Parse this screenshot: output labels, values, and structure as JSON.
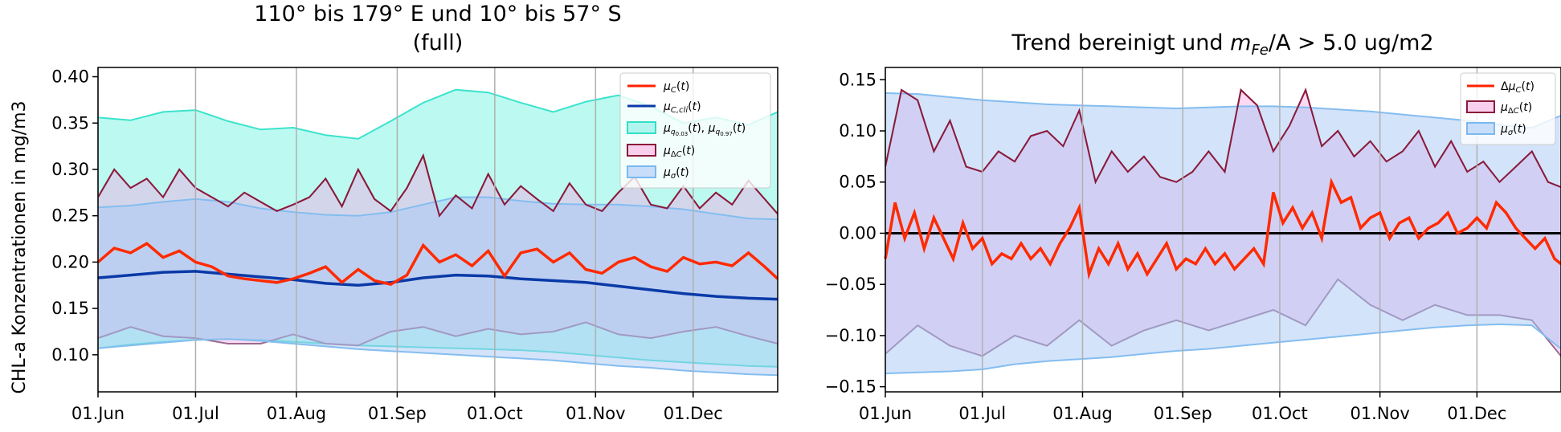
{
  "ylabel": "CHL-a Konzentrationen in mg/m3",
  "chart_data": [
    {
      "type": "line",
      "title_line1": "110° bis 179° E und 10° bis 57° S",
      "title_line2": "(full)",
      "x_tick_labels": [
        "01.Jun",
        "01.Jul",
        "01.Aug",
        "01.Sep",
        "01.Oct",
        "01.Nov",
        "01.Dec"
      ],
      "x_tick_days": [
        0,
        30,
        61,
        92,
        122,
        153,
        183
      ],
      "xlim_days": [
        0,
        209
      ],
      "ylim": [
        0.06,
        0.41
      ],
      "y_ticks": [
        0.1,
        0.15,
        0.2,
        0.25,
        0.3,
        0.35,
        0.4
      ],
      "y_tick_labels": [
        "0.10",
        "0.15",
        "0.20",
        "0.25",
        "0.30",
        "0.35",
        "0.40"
      ],
      "grid": "vertical",
      "legend_position": "top-right",
      "legend": [
        "μ_C(t)",
        "μ_C,cli(t)",
        "μ_q0.03(t), μ_q0.97(t)",
        "μ_ΔC(t)",
        "μ_σ(t)"
      ],
      "series": [
        {
          "key": "q003",
          "x": [
            0,
            10,
            20,
            30,
            40,
            50,
            60,
            70,
            80,
            90,
            100,
            110,
            120,
            130,
            140,
            150,
            160,
            170,
            180,
            190,
            200,
            209
          ],
          "values": [
            0.107,
            0.111,
            0.114,
            0.116,
            0.117,
            0.116,
            0.114,
            0.112,
            0.11,
            0.109,
            0.108,
            0.107,
            0.106,
            0.105,
            0.103,
            0.1,
            0.097,
            0.094,
            0.092,
            0.09,
            0.088,
            0.087
          ]
        },
        {
          "key": "q097",
          "x": [
            0,
            10,
            20,
            30,
            40,
            50,
            60,
            70,
            80,
            90,
            100,
            110,
            120,
            130,
            140,
            150,
            160,
            170,
            180,
            190,
            200,
            209
          ],
          "values": [
            0.356,
            0.353,
            0.362,
            0.364,
            0.352,
            0.343,
            0.345,
            0.337,
            0.333,
            0.352,
            0.372,
            0.386,
            0.383,
            0.372,
            0.362,
            0.373,
            0.38,
            0.368,
            0.35,
            0.356,
            0.348,
            0.362
          ]
        },
        {
          "key": "sigma_upper",
          "x": [
            0,
            10,
            20,
            30,
            40,
            50,
            60,
            70,
            80,
            90,
            100,
            110,
            120,
            130,
            140,
            150,
            160,
            170,
            180,
            190,
            200,
            209
          ],
          "values": [
            0.259,
            0.261,
            0.265,
            0.268,
            0.265,
            0.258,
            0.254,
            0.251,
            0.25,
            0.254,
            0.262,
            0.27,
            0.27,
            0.266,
            0.263,
            0.262,
            0.262,
            0.26,
            0.257,
            0.252,
            0.247,
            0.246
          ]
        },
        {
          "key": "sigma_lower",
          "x": [
            0,
            10,
            20,
            30,
            40,
            50,
            60,
            70,
            80,
            90,
            100,
            110,
            120,
            130,
            140,
            150,
            160,
            170,
            180,
            190,
            200,
            209
          ],
          "values": [
            0.107,
            0.11,
            0.113,
            0.116,
            0.117,
            0.115,
            0.112,
            0.109,
            0.106,
            0.104,
            0.102,
            0.1,
            0.098,
            0.096,
            0.094,
            0.091,
            0.088,
            0.086,
            0.083,
            0.081,
            0.079,
            0.078
          ]
        },
        {
          "key": "delta_upper",
          "x": [
            0,
            5,
            10,
            15,
            20,
            25,
            30,
            35,
            40,
            45,
            50,
            55,
            60,
            65,
            70,
            75,
            80,
            85,
            90,
            95,
            100,
            105,
            110,
            115,
            120,
            125,
            130,
            135,
            140,
            145,
            150,
            155,
            160,
            165,
            170,
            175,
            180,
            185,
            190,
            195,
            200,
            205,
            209
          ],
          "values": [
            0.27,
            0.3,
            0.28,
            0.29,
            0.27,
            0.3,
            0.28,
            0.27,
            0.26,
            0.275,
            0.265,
            0.255,
            0.262,
            0.27,
            0.29,
            0.26,
            0.3,
            0.268,
            0.255,
            0.28,
            0.315,
            0.25,
            0.272,
            0.258,
            0.295,
            0.262,
            0.282,
            0.268,
            0.255,
            0.285,
            0.262,
            0.255,
            0.275,
            0.292,
            0.262,
            0.258,
            0.282,
            0.258,
            0.275,
            0.262,
            0.288,
            0.268,
            0.252
          ]
        },
        {
          "key": "delta_lower",
          "x": [
            0,
            10,
            20,
            30,
            40,
            50,
            60,
            70,
            80,
            90,
            100,
            110,
            120,
            130,
            140,
            150,
            160,
            170,
            180,
            190,
            200,
            209
          ],
          "values": [
            0.118,
            0.13,
            0.12,
            0.118,
            0.112,
            0.112,
            0.122,
            0.112,
            0.11,
            0.125,
            0.13,
            0.12,
            0.128,
            0.122,
            0.125,
            0.135,
            0.122,
            0.118,
            0.125,
            0.13,
            0.12,
            0.112
          ]
        },
        {
          "key": "mu_c",
          "x": [
            0,
            5,
            10,
            15,
            20,
            25,
            30,
            35,
            40,
            45,
            50,
            55,
            60,
            65,
            70,
            75,
            80,
            85,
            90,
            95,
            100,
            105,
            110,
            115,
            120,
            125,
            130,
            135,
            140,
            145,
            150,
            155,
            160,
            165,
            170,
            175,
            180,
            185,
            190,
            195,
            200,
            205,
            209
          ],
          "values": [
            0.2,
            0.215,
            0.21,
            0.22,
            0.205,
            0.212,
            0.2,
            0.195,
            0.185,
            0.182,
            0.18,
            0.178,
            0.182,
            0.188,
            0.195,
            0.178,
            0.192,
            0.18,
            0.176,
            0.186,
            0.218,
            0.2,
            0.208,
            0.196,
            0.212,
            0.185,
            0.21,
            0.214,
            0.2,
            0.21,
            0.192,
            0.188,
            0.2,
            0.205,
            0.195,
            0.19,
            0.205,
            0.198,
            0.2,
            0.196,
            0.21,
            0.195,
            0.182
          ]
        },
        {
          "key": "mu_cli",
          "x": [
            0,
            10,
            20,
            30,
            40,
            50,
            60,
            70,
            80,
            90,
            100,
            110,
            120,
            130,
            140,
            150,
            160,
            170,
            180,
            190,
            200,
            209
          ],
          "values": [
            0.183,
            0.186,
            0.189,
            0.19,
            0.187,
            0.184,
            0.181,
            0.177,
            0.175,
            0.178,
            0.183,
            0.186,
            0.185,
            0.182,
            0.18,
            0.178,
            0.174,
            0.17,
            0.166,
            0.163,
            0.161,
            0.16
          ]
        }
      ]
    },
    {
      "type": "line",
      "title_prefix": "Trend bereinigt und ",
      "title_math": "m",
      "title_sub": "Fe",
      "title_suffix": "/A > 5.0 ug/m2",
      "x_tick_labels": [
        "01.Jun",
        "01.Jul",
        "01.Aug",
        "01.Sep",
        "01.Oct",
        "01.Nov",
        "01.Dec"
      ],
      "x_tick_days": [
        0,
        30,
        61,
        92,
        122,
        153,
        183
      ],
      "xlim_days": [
        0,
        209
      ],
      "ylim": [
        -0.155,
        0.162
      ],
      "y_ticks": [
        -0.15,
        -0.1,
        -0.05,
        0.0,
        0.05,
        0.1,
        0.15
      ],
      "y_tick_labels": [
        "−0.15",
        "−0.10",
        "−0.05",
        "0.00",
        "0.05",
        "0.10",
        "0.15"
      ],
      "grid": "vertical",
      "legend_position": "top-right",
      "legend": [
        "Δμ_C(t)",
        "μ_ΔC(t)",
        "μ_σ(t)"
      ],
      "series": [
        {
          "key": "sigma_upper",
          "x": [
            0,
            10,
            20,
            30,
            40,
            50,
            60,
            70,
            80,
            90,
            100,
            110,
            120,
            130,
            140,
            150,
            160,
            170,
            180,
            190,
            200,
            209
          ],
          "values": [
            0.137,
            0.136,
            0.133,
            0.13,
            0.128,
            0.126,
            0.125,
            0.124,
            0.123,
            0.122,
            0.123,
            0.124,
            0.124,
            0.123,
            0.121,
            0.119,
            0.116,
            0.113,
            0.11,
            0.106,
            0.103,
            0.115
          ]
        },
        {
          "key": "sigma_lower",
          "x": [
            0,
            10,
            20,
            30,
            40,
            50,
            60,
            70,
            80,
            90,
            100,
            110,
            120,
            130,
            140,
            150,
            160,
            170,
            180,
            190,
            200,
            209
          ],
          "values": [
            -0.137,
            -0.136,
            -0.135,
            -0.133,
            -0.128,
            -0.125,
            -0.123,
            -0.121,
            -0.118,
            -0.115,
            -0.113,
            -0.11,
            -0.107,
            -0.104,
            -0.101,
            -0.098,
            -0.095,
            -0.092,
            -0.09,
            -0.089,
            -0.09,
            -0.113
          ]
        },
        {
          "key": "delta_upper",
          "x": [
            0,
            5,
            10,
            15,
            20,
            25,
            30,
            35,
            40,
            45,
            50,
            55,
            60,
            65,
            70,
            75,
            80,
            85,
            90,
            95,
            100,
            105,
            110,
            115,
            120,
            125,
            130,
            135,
            140,
            145,
            150,
            155,
            160,
            165,
            170,
            175,
            180,
            185,
            190,
            195,
            200,
            205,
            209
          ],
          "values": [
            0.065,
            0.14,
            0.13,
            0.08,
            0.11,
            0.065,
            0.06,
            0.08,
            0.07,
            0.095,
            0.1,
            0.085,
            0.12,
            0.05,
            0.08,
            0.06,
            0.075,
            0.055,
            0.05,
            0.06,
            0.08,
            0.06,
            0.14,
            0.125,
            0.08,
            0.105,
            0.14,
            0.085,
            0.1,
            0.075,
            0.09,
            0.07,
            0.08,
            0.1,
            0.065,
            0.09,
            0.06,
            0.07,
            0.05,
            0.065,
            0.08,
            0.05,
            0.045
          ]
        },
        {
          "key": "delta_lower",
          "x": [
            0,
            10,
            20,
            30,
            40,
            50,
            60,
            70,
            80,
            90,
            100,
            110,
            120,
            130,
            140,
            150,
            160,
            170,
            180,
            190,
            200,
            209
          ],
          "values": [
            -0.118,
            -0.09,
            -0.11,
            -0.12,
            -0.1,
            -0.11,
            -0.085,
            -0.11,
            -0.095,
            -0.085,
            -0.095,
            -0.085,
            -0.075,
            -0.09,
            -0.045,
            -0.07,
            -0.085,
            -0.07,
            -0.08,
            -0.08,
            -0.085,
            -0.12
          ]
        },
        {
          "key": "mu_c",
          "x": [
            0,
            3,
            6,
            9,
            12,
            15,
            18,
            21,
            24,
            27,
            30,
            33,
            36,
            39,
            42,
            45,
            48,
            51,
            54,
            57,
            60,
            63,
            66,
            69,
            72,
            75,
            78,
            81,
            84,
            87,
            90,
            93,
            96,
            99,
            102,
            105,
            108,
            111,
            114,
            117,
            120,
            123,
            126,
            129,
            132,
            135,
            138,
            141,
            144,
            147,
            150,
            153,
            156,
            159,
            162,
            165,
            168,
            171,
            174,
            177,
            180,
            183,
            186,
            189,
            192,
            195,
            198,
            201,
            204,
            207,
            209
          ],
          "values": [
            -0.025,
            0.03,
            -0.005,
            0.02,
            -0.015,
            0.015,
            -0.005,
            -0.025,
            0.01,
            -0.015,
            -0.005,
            -0.03,
            -0.02,
            -0.025,
            -0.01,
            -0.025,
            -0.015,
            -0.03,
            -0.01,
            0.005,
            0.025,
            -0.04,
            -0.015,
            -0.03,
            -0.01,
            -0.035,
            -0.02,
            -0.04,
            -0.025,
            -0.01,
            -0.035,
            -0.025,
            -0.03,
            -0.015,
            -0.03,
            -0.02,
            -0.035,
            -0.025,
            -0.015,
            -0.03,
            0.04,
            0.01,
            0.025,
            0.005,
            0.02,
            -0.005,
            0.05,
            0.03,
            0.035,
            0.005,
            0.015,
            0.02,
            -0.005,
            0.01,
            0.015,
            -0.005,
            0.005,
            0.01,
            0.02,
            0.0,
            0.005,
            0.015,
            0.005,
            0.03,
            0.02,
            0.005,
            -0.005,
            -0.015,
            -0.005,
            -0.025,
            -0.03
          ]
        }
      ]
    }
  ]
}
